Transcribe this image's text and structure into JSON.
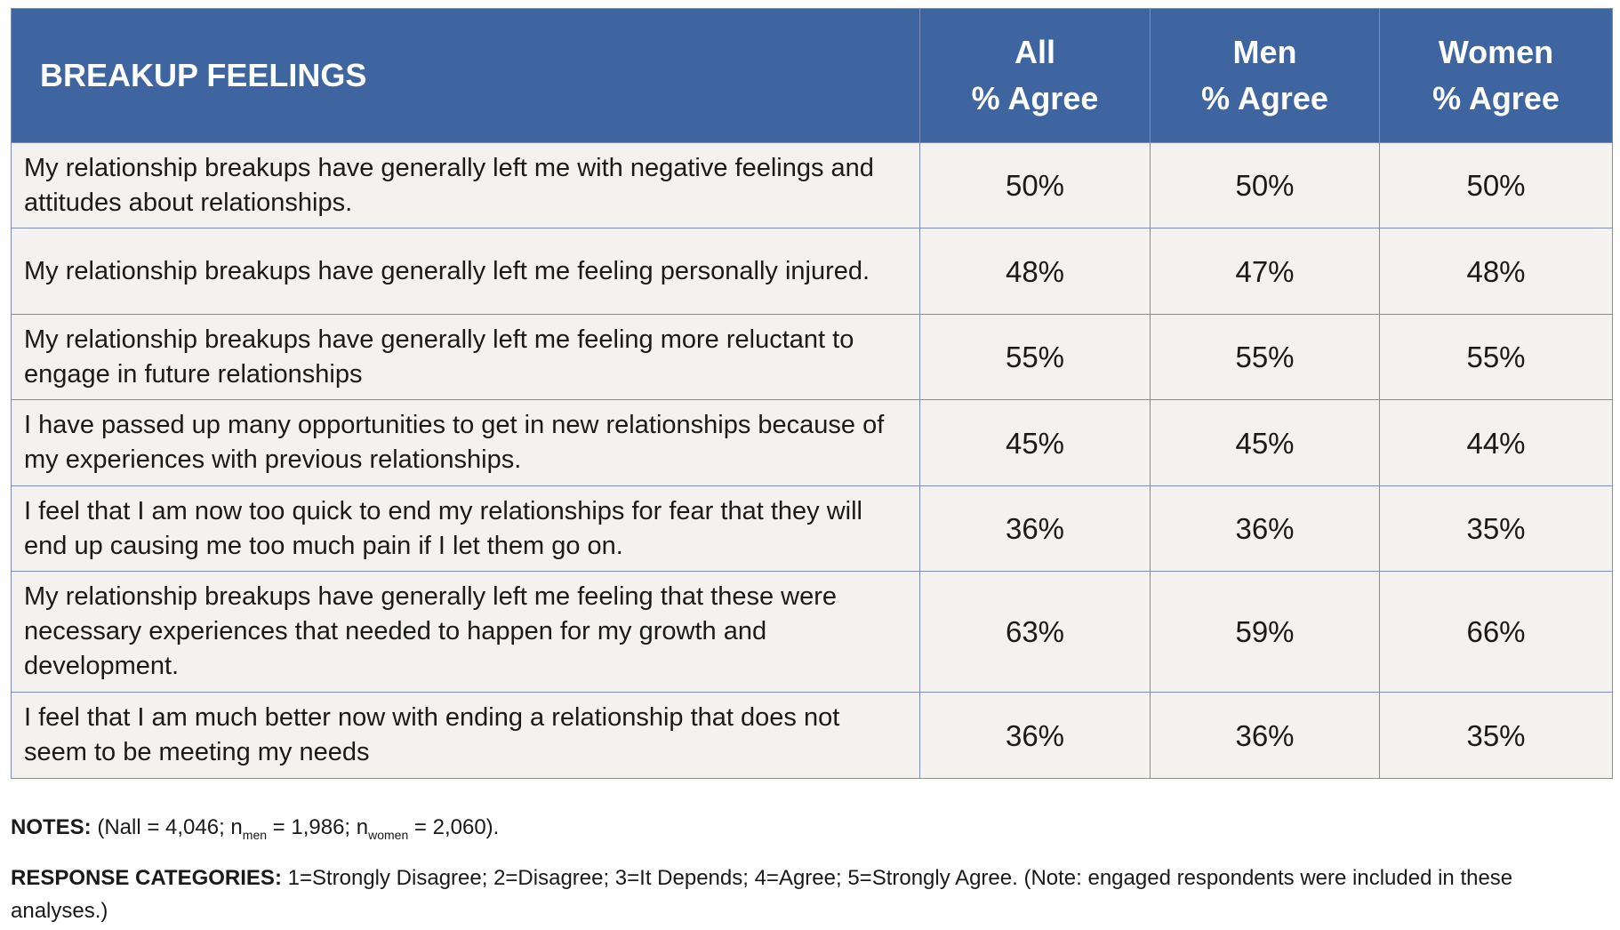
{
  "table": {
    "headers": [
      {
        "line1": "BREAKUP FEELINGS",
        "line2": ""
      },
      {
        "line1": "All",
        "line2": "% Agree"
      },
      {
        "line1": "Men",
        "line2": "% Agree"
      },
      {
        "line1": "Women",
        "line2": "% Agree"
      }
    ],
    "rows": [
      {
        "statement": "My relationship breakups have generally left me with negative feelings and attitudes about relationships.",
        "all": "50%",
        "men": "50%",
        "women": "50%"
      },
      {
        "statement": "My relationship breakups have generally left me feeling personally injured.",
        "all": "48%",
        "men": "47%",
        "women": "48%"
      },
      {
        "statement": "My relationship breakups have generally left me feeling more reluctant to engage in future relationships",
        "all": "55%",
        "men": "55%",
        "women": "55%"
      },
      {
        "statement": "I have passed up many opportunities to get in new relationships because of my experiences with previous relationships.",
        "all": "45%",
        "men": "45%",
        "women": "44%"
      },
      {
        "statement": "I feel that I am now too quick to end my relationships for fear that they will end up causing me too much pain if I let them go on.",
        "all": "36%",
        "men": "36%",
        "women": "35%"
      },
      {
        "statement": "My relationship breakups have generally left me feeling that these were necessary experiences that needed to happen for my growth and development.",
        "all": "63%",
        "men": "59%",
        "women": "66%"
      },
      {
        "statement": "I feel that I am much better now with ending a relationship that does not seem to be meeting my needs",
        "all": "36%",
        "men": "36%",
        "women": "35%"
      }
    ]
  },
  "notes": {
    "label": "NOTES:",
    "p1": " (Nall = 4,046; n",
    "sub1": "men",
    "p2": " = 1,986; n",
    "sub2": "women",
    "p3": " = 2,060)."
  },
  "response": {
    "label": "RESPONSE CATEGORIES:",
    "text": " 1=Strongly Disagree; 2=Disagree; 3=It Depends; 4=Agree; 5=Strongly Agree. (Note: engaged respondents were included in these analyses.)"
  },
  "colors": {
    "header_bg": "#3e659f",
    "row_bg": "#f3f2ee",
    "border": "#7f8bbd"
  }
}
